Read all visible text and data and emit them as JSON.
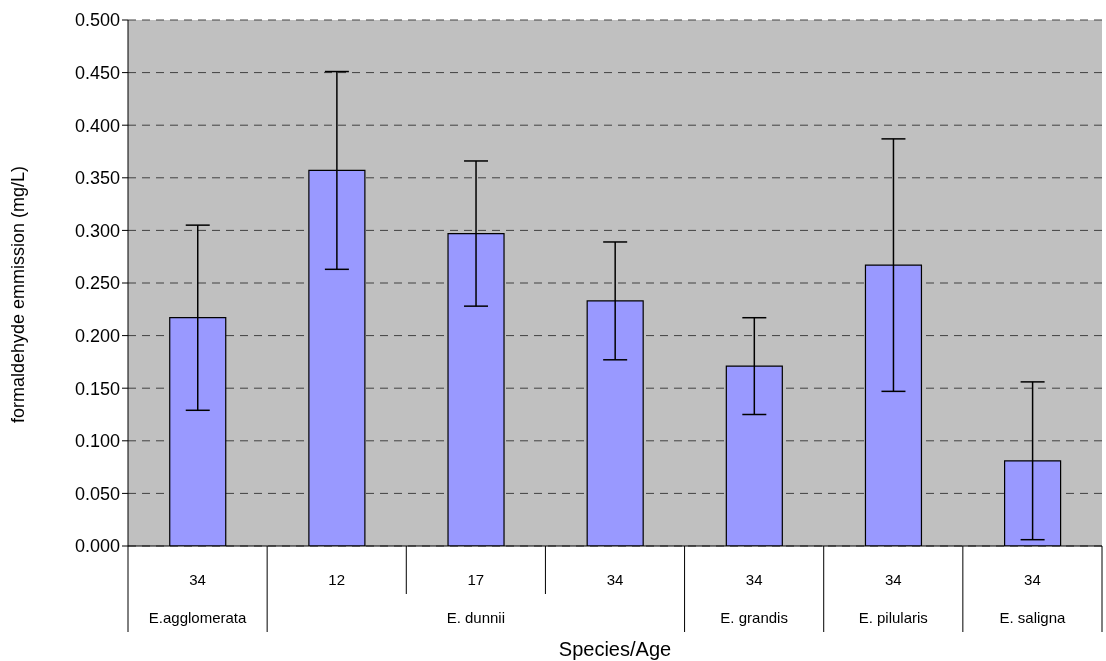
{
  "chart_data": {
    "type": "bar",
    "xlabel": "Species/Age",
    "ylabel": "formaldehyde emmission (mg/L)",
    "categories": [
      "34",
      "12",
      "17",
      "34",
      "34",
      "34",
      "34"
    ],
    "values": [
      0.217,
      0.357,
      0.297,
      0.233,
      0.171,
      0.267,
      0.081
    ],
    "errors": [
      0.088,
      0.094,
      0.069,
      0.056,
      0.046,
      0.12,
      0.075
    ],
    "color": "#9999ff",
    "ylim": [
      0,
      0.5
    ],
    "yticks": [
      {
        "value": 0,
        "label": "0.000"
      },
      {
        "value": 0.05,
        "label": "0.050"
      },
      {
        "value": 0.1,
        "label": "0.100"
      },
      {
        "value": 0.15,
        "label": "0.150"
      },
      {
        "value": 0.2,
        "label": "0.200"
      },
      {
        "value": 0.25,
        "label": "0.250"
      },
      {
        "value": 0.3,
        "label": "0.300"
      },
      {
        "value": 0.35,
        "label": "0.350"
      },
      {
        "value": 0.4,
        "label": "0.400"
      },
      {
        "value": 0.45,
        "label": "0.450"
      },
      {
        "value": 0.5,
        "label": "0.500"
      }
    ],
    "grid": "y",
    "legend": false,
    "annotations": [
      "E.agglomerata",
      "E. dunnii",
      "E. grandis",
      "E. pilularis",
      "E. saligna"
    ]
  }
}
